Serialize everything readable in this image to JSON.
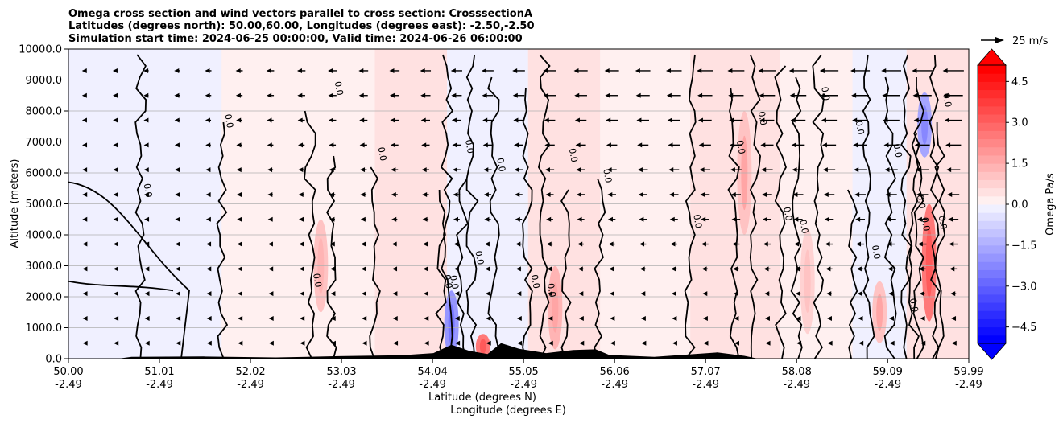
{
  "chart_data": {
    "type": "contour-cross-section",
    "title_lines": [
      "Omega cross section and wind vectors parallel to cross section: CrosssectionA",
      "Latitudes (degrees north): 50.00,60.00, Longitudes (degrees east): -2.50,-2.50",
      "Simulation start time: 2024-06-25 00:00:00, Valid time: 2024-06-26 06:00:00"
    ],
    "xlabel_line1": "Latitude (degrees N)",
    "xlabel_line2": "Longitude (degrees E)",
    "ylabel": "Altitude (meters)",
    "xlim": [
      50.0,
      59.99
    ],
    "ylim": [
      0,
      10000
    ],
    "x_ticks": [
      {
        "lat": 50.0,
        "lat_label": "50.00",
        "lon_label": "-2.49"
      },
      {
        "lat": 51.01,
        "lat_label": "51.01",
        "lon_label": "-2.49"
      },
      {
        "lat": 52.02,
        "lat_label": "52.02",
        "lon_label": "-2.49"
      },
      {
        "lat": 53.03,
        "lat_label": "53.03",
        "lon_label": "-2.49"
      },
      {
        "lat": 54.04,
        "lat_label": "54.04",
        "lon_label": "-2.49"
      },
      {
        "lat": 55.05,
        "lat_label": "55.05",
        "lon_label": "-2.49"
      },
      {
        "lat": 56.06,
        "lat_label": "56.06",
        "lon_label": "-2.49"
      },
      {
        "lat": 57.07,
        "lat_label": "57.07",
        "lon_label": "-2.49"
      },
      {
        "lat": 58.08,
        "lat_label": "58.08",
        "lon_label": "-2.49"
      },
      {
        "lat": 59.09,
        "lat_label": "59.09",
        "lon_label": "-2.49"
      },
      {
        "lat": 59.99,
        "lat_label": "59.99",
        "lon_label": "-2.49"
      }
    ],
    "y_ticks": [
      {
        "value": 0,
        "label": "0.0"
      },
      {
        "value": 1000,
        "label": "1000.0"
      },
      {
        "value": 2000,
        "label": "2000.0"
      },
      {
        "value": 3000,
        "label": "3000.0"
      },
      {
        "value": 4000,
        "label": "4000.0"
      },
      {
        "value": 5000,
        "label": "5000.0"
      },
      {
        "value": 6000,
        "label": "6000.0"
      },
      {
        "value": 7000,
        "label": "7000.0"
      },
      {
        "value": 8000,
        "label": "8000.0"
      },
      {
        "value": 9000,
        "label": "9000.0"
      },
      {
        "value": 10000,
        "label": "10000.0"
      }
    ],
    "colorbar": {
      "label": "Omega Pa/s",
      "vmin": -5.1,
      "vmax": 5.1,
      "levels_step": 0.3,
      "tick_values": [
        -4.5,
        -3.0,
        -1.5,
        0.0,
        1.5,
        3.0,
        4.5
      ],
      "tick_labels": [
        "−4.5",
        "−3.0",
        "−1.5",
        "0.0",
        "1.5",
        "3.0",
        "4.5"
      ],
      "extend": "both",
      "low_color": "#0000ff",
      "high_color": "#ff0000",
      "mid_color": "#ffffff"
    },
    "quiver_key": {
      "speed": 25,
      "label": "25 m/s"
    },
    "contour_level_label": "0.0",
    "background_omega_bands": [
      {
        "lat_start": 50.0,
        "lat_end": 50.8,
        "omega": -0.2
      },
      {
        "lat_start": 50.8,
        "lat_end": 51.7,
        "omega": -0.2
      },
      {
        "lat_start": 51.7,
        "lat_end": 53.4,
        "omega": 0.2
      },
      {
        "lat_start": 53.4,
        "lat_end": 54.2,
        "omega": 0.6
      },
      {
        "lat_start": 54.2,
        "lat_end": 55.1,
        "omega": -0.2
      },
      {
        "lat_start": 55.1,
        "lat_end": 55.9,
        "omega": 0.5
      },
      {
        "lat_start": 55.9,
        "lat_end": 56.9,
        "omega": 0.2
      },
      {
        "lat_start": 56.9,
        "lat_end": 57.9,
        "omega": 0.6
      },
      {
        "lat_start": 57.9,
        "lat_end": 58.7,
        "omega": 0.2
      },
      {
        "lat_start": 58.7,
        "lat_end": 59.3,
        "omega": -0.3
      },
      {
        "lat_start": 59.3,
        "lat_end": 59.99,
        "omega": 0.4
      }
    ],
    "omega_features": [
      {
        "lat": 59.55,
        "alt_bottom": 1200,
        "alt_top": 5000,
        "omega": 2.5
      },
      {
        "lat": 59.0,
        "alt_bottom": 500,
        "alt_top": 2500,
        "omega": 1.2
      },
      {
        "lat": 59.5,
        "alt_bottom": 6500,
        "alt_top": 8600,
        "omega": -1.8
      },
      {
        "lat": 54.25,
        "alt_bottom": 0,
        "alt_top": 2200,
        "omega": -2.0
      },
      {
        "lat": 54.6,
        "alt_bottom": 0,
        "alt_top": 800,
        "omega": 2.5
      },
      {
        "lat": 57.5,
        "alt_bottom": 4000,
        "alt_top": 8000,
        "omega": 1.2
      },
      {
        "lat": 52.8,
        "alt_bottom": 1500,
        "alt_top": 4500,
        "omega": 1.0
      },
      {
        "lat": 55.4,
        "alt_bottom": 300,
        "alt_top": 3000,
        "omega": 1.3
      },
      {
        "lat": 58.2,
        "alt_bottom": 800,
        "alt_top": 4200,
        "omega": 0.9
      }
    ],
    "terrain": [
      {
        "lat": 50.0,
        "alt": 0
      },
      {
        "lat": 50.55,
        "alt": 0
      },
      {
        "lat": 50.7,
        "alt": 60
      },
      {
        "lat": 51.5,
        "alt": 70
      },
      {
        "lat": 52.3,
        "alt": 40
      },
      {
        "lat": 53.0,
        "alt": 80
      },
      {
        "lat": 53.7,
        "alt": 110
      },
      {
        "lat": 54.05,
        "alt": 180
      },
      {
        "lat": 54.25,
        "alt": 450
      },
      {
        "lat": 54.45,
        "alt": 250
      },
      {
        "lat": 54.65,
        "alt": 150
      },
      {
        "lat": 54.8,
        "alt": 500
      },
      {
        "lat": 55.0,
        "alt": 320
      },
      {
        "lat": 55.3,
        "alt": 180
      },
      {
        "lat": 55.6,
        "alt": 280
      },
      {
        "lat": 55.85,
        "alt": 300
      },
      {
        "lat": 56.0,
        "alt": 120
      },
      {
        "lat": 56.5,
        "alt": 60
      },
      {
        "lat": 56.95,
        "alt": 150
      },
      {
        "lat": 57.2,
        "alt": 200
      },
      {
        "lat": 57.5,
        "alt": 90
      },
      {
        "lat": 57.65,
        "alt": 0
      },
      {
        "lat": 59.99,
        "alt": 0
      }
    ],
    "wind_field": {
      "note": "wind component parallel to cross section (m/s), negative = toward lower latitude",
      "surface_speed": -2,
      "upper_speed_west_end": -3,
      "upper_speed_east_end": -18
    }
  }
}
